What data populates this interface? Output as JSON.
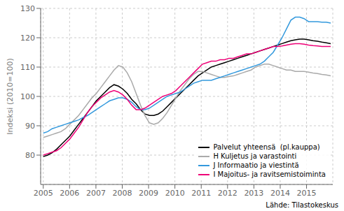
{
  "chart_data": {
    "type": "line",
    "ylabel": "Indeksi (2010=100)",
    "annotations": [
      "Lähde: Tilastokeskus"
    ],
    "x": [
      2005,
      2005.168,
      2005.3359,
      2005.5039,
      2005.6718,
      2005.8398,
      2006.0077,
      2006.1757,
      2006.3436,
      2006.5116,
      2006.6795,
      2006.8475,
      2007.0154,
      2007.1834,
      2007.3514,
      2007.5193,
      2007.6873,
      2007.8552,
      2008.0232,
      2008.1911,
      2008.3591,
      2008.527,
      2008.695,
      2008.8629,
      2009.0309,
      2009.1988,
      2009.3668,
      2009.5348,
      2009.7027,
      2009.8707,
      2010.0386,
      2010.2066,
      2010.3745,
      2010.5425,
      2010.7104,
      2010.8784,
      2011.0463,
      2011.2143,
      2011.3822,
      2011.5502,
      2011.7182,
      2011.8861,
      2012.0541,
      2012.222,
      2012.39,
      2012.5579,
      2012.7259,
      2012.8938,
      2013.0618,
      2013.2297,
      2013.3977,
      2013.5656,
      2013.7336,
      2013.9016,
      2014.0695,
      2014.2375,
      2014.4054,
      2014.5734,
      2014.7413,
      2014.9093,
      2015.0772,
      2015.2452,
      2015.4131,
      2015.5811,
      2015.749,
      2015.917
    ],
    "xlim": [
      2004.9,
      2015.997
    ],
    "xticks": [
      2005,
      2006,
      2007,
      2008,
      2009,
      2010,
      2011,
      2012,
      2013,
      2014,
      2015
    ],
    "ylim": [
      70,
      130
    ],
    "yticks": [
      80,
      90,
      100,
      110,
      120,
      130
    ],
    "grid": true,
    "legend": "lower right",
    "series": [
      {
        "name": "Palvelut yhteensä  (pl.kauppa)",
        "color": "#000000",
        "values": [
          79.5,
          80.0,
          80.8,
          82.0,
          83.5,
          85.0,
          86.5,
          88.5,
          90.5,
          92.5,
          94.5,
          96.5,
          98.5,
          100.0,
          101.5,
          103.0,
          104.0,
          103.5,
          102.5,
          101.0,
          99.0,
          97.5,
          95.5,
          94.0,
          93.5,
          93.5,
          94.0,
          95.0,
          96.5,
          98.0,
          99.5,
          101.0,
          102.5,
          104.0,
          105.5,
          107.0,
          108.0,
          109.0,
          110.0,
          110.5,
          111.0,
          111.5,
          112.0,
          112.5,
          113.0,
          113.5,
          114.0,
          114.5,
          115.0,
          115.5,
          116.0,
          116.5,
          117.0,
          117.5,
          118.0,
          118.5,
          119.0,
          119.3,
          119.5,
          119.5,
          119.3,
          119.0,
          118.8,
          118.5,
          118.3,
          118.0
        ]
      },
      {
        "name": "H Kuljetus ja varastointi",
        "color": "#aaaaaa",
        "values": [
          86.0,
          86.5,
          87.0,
          87.5,
          88.0,
          89.0,
          90.5,
          92.0,
          93.5,
          95.5,
          97.5,
          99.5,
          101.0,
          103.0,
          105.0,
          107.0,
          109.0,
          110.5,
          110.0,
          108.0,
          105.0,
          101.0,
          97.0,
          93.5,
          91.0,
          90.5,
          91.0,
          92.5,
          94.5,
          97.0,
          99.5,
          102.0,
          104.0,
          106.0,
          107.5,
          108.5,
          108.5,
          108.0,
          107.5,
          107.0,
          106.5,
          106.5,
          106.8,
          107.0,
          107.5,
          108.0,
          108.5,
          109.0,
          110.0,
          110.5,
          111.0,
          111.0,
          110.5,
          110.0,
          109.5,
          109.0,
          109.0,
          108.5,
          108.5,
          108.5,
          108.3,
          108.0,
          107.8,
          107.5,
          107.3,
          107.0
        ]
      },
      {
        "name": "J Informaatio ja viestintä",
        "color": "#3399dd",
        "values": [
          87.5,
          88.0,
          89.0,
          89.5,
          90.0,
          90.5,
          91.0,
          91.5,
          92.0,
          92.8,
          93.5,
          94.5,
          95.5,
          96.5,
          97.5,
          98.5,
          99.0,
          99.5,
          99.5,
          99.0,
          98.0,
          96.5,
          95.5,
          95.5,
          96.0,
          97.0,
          98.0,
          99.0,
          100.0,
          100.5,
          101.0,
          101.5,
          102.5,
          103.5,
          104.5,
          105.0,
          105.5,
          105.5,
          105.5,
          106.0,
          106.5,
          107.0,
          107.5,
          108.0,
          108.5,
          109.0,
          109.5,
          110.0,
          110.5,
          111.0,
          112.0,
          113.5,
          115.0,
          117.5,
          120.0,
          123.0,
          126.0,
          127.0,
          127.0,
          126.5,
          125.5,
          125.5,
          125.5,
          125.3,
          125.3,
          125.0
        ]
      },
      {
        "name": "I Majoitus- ja ravitsemistoiminta",
        "color": "#ee0077",
        "values": [
          80.0,
          80.5,
          81.0,
          81.5,
          82.5,
          84.0,
          85.5,
          87.5,
          89.5,
          92.0,
          94.5,
          96.5,
          98.0,
          99.5,
          100.5,
          101.5,
          102.0,
          101.5,
          100.5,
          99.0,
          97.0,
          95.5,
          95.5,
          96.0,
          97.0,
          98.0,
          99.0,
          100.0,
          100.5,
          101.0,
          102.0,
          103.5,
          105.0,
          106.5,
          108.0,
          109.5,
          111.0,
          111.5,
          112.0,
          112.0,
          112.5,
          112.5,
          113.0,
          113.0,
          113.5,
          114.0,
          114.5,
          114.5,
          115.0,
          115.5,
          116.0,
          116.5,
          117.0,
          117.0,
          117.2,
          117.5,
          117.8,
          118.0,
          118.0,
          117.8,
          117.5,
          117.3,
          117.2,
          117.0,
          117.0,
          117.0
        ]
      }
    ]
  }
}
